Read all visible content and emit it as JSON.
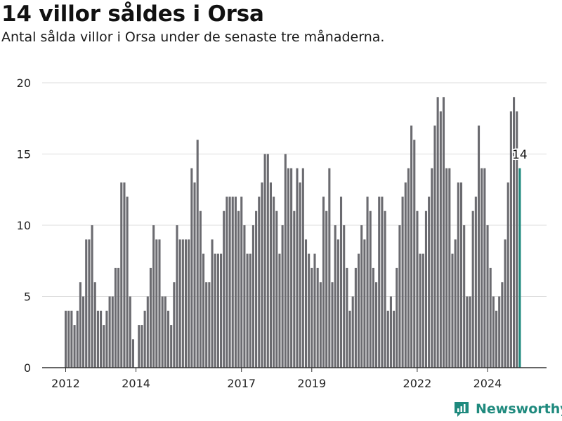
{
  "title": "14 villor såldes i Orsa",
  "subtitle": "Antal sålda villor i Orsa under de senaste tre månaderna.",
  "brand": "Newsworthy",
  "colors": {
    "bar": "#6b6b70",
    "highlight": "#1f8a7e",
    "grid": "#dddddd",
    "axis": "#333333"
  },
  "chart_data": {
    "type": "bar",
    "ylim": [
      0,
      20
    ],
    "yticks": [
      0,
      5,
      10,
      15,
      20
    ],
    "xticks": [
      {
        "label": "2012",
        "index": 0
      },
      {
        "label": "2014",
        "index": 24
      },
      {
        "label": "2017",
        "index": 60
      },
      {
        "label": "2019",
        "index": 84
      },
      {
        "label": "2022",
        "index": 120
      },
      {
        "label": "2024",
        "index": 144
      }
    ],
    "start": "2012-01",
    "frequency": "monthly",
    "values": [
      4,
      4,
      4,
      3,
      4,
      6,
      5,
      9,
      9,
      10,
      6,
      4,
      4,
      3,
      4,
      5,
      5,
      7,
      7,
      13,
      13,
      12,
      5,
      2,
      0,
      3,
      3,
      4,
      5,
      7,
      10,
      9,
      9,
      5,
      5,
      4,
      3,
      6,
      10,
      9,
      9,
      9,
      9,
      14,
      13,
      16,
      11,
      8,
      6,
      6,
      9,
      8,
      8,
      8,
      11,
      12,
      12,
      12,
      12,
      11,
      12,
      10,
      8,
      8,
      10,
      11,
      12,
      13,
      15,
      15,
      13,
      12,
      11,
      8,
      10,
      15,
      14,
      14,
      11,
      14,
      13,
      14,
      9,
      8,
      7,
      8,
      7,
      6,
      12,
      11,
      14,
      6,
      10,
      9,
      12,
      10,
      7,
      4,
      5,
      7,
      8,
      10,
      9,
      12,
      11,
      7,
      6,
      12,
      12,
      11,
      4,
      5,
      4,
      7,
      10,
      12,
      13,
      14,
      17,
      16,
      11,
      8,
      8,
      11,
      12,
      14,
      17,
      19,
      18,
      19,
      14,
      14,
      8,
      9,
      13,
      13,
      10,
      5,
      5,
      11,
      12,
      17,
      14,
      14,
      10,
      7,
      5,
      4,
      5,
      6,
      9,
      13,
      18,
      19,
      18,
      14
    ],
    "highlight_index": 155,
    "highlight_label": "14"
  }
}
